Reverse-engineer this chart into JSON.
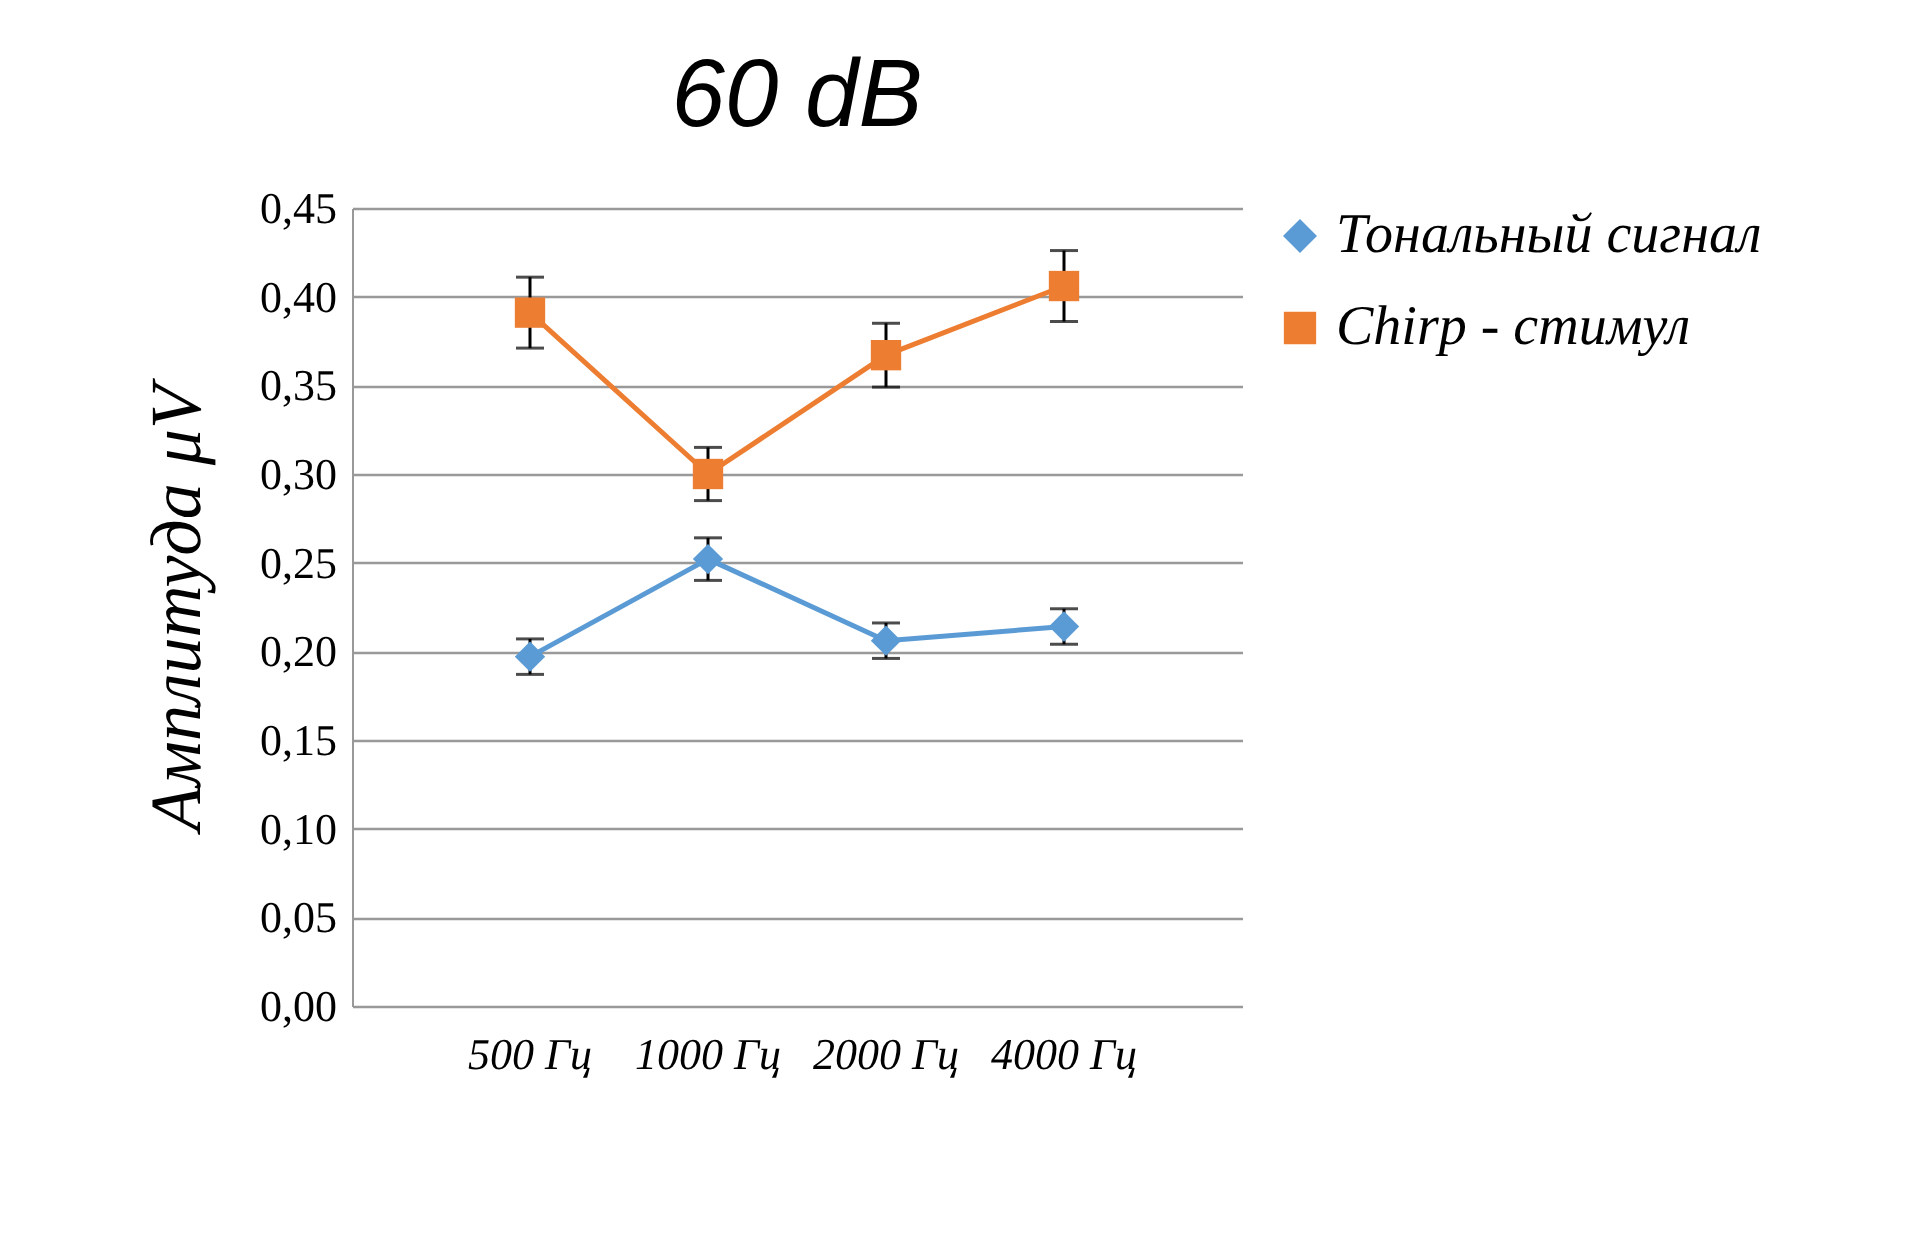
{
  "chart_data": {
    "type": "line",
    "title": "60 dB",
    "ylabel": "Амплитуда μV",
    "categories": [
      "500 Гц",
      "1000 Гц",
      "2000 Гц",
      "4000 Гц"
    ],
    "series": [
      {
        "name": "Тональный сигнал",
        "color": "#5b9bd5",
        "marker": "diamond",
        "values": [
          0.197,
          0.252,
          0.206,
          0.214
        ],
        "errors": [
          0.01,
          0.012,
          0.01,
          0.01
        ]
      },
      {
        "name": "Chirp - стимул",
        "color": "#ed7d31",
        "marker": "square",
        "values": [
          0.391,
          0.3,
          0.367,
          0.406
        ],
        "errors": [
          0.02,
          0.015,
          0.018,
          0.02
        ]
      }
    ],
    "ylim": [
      0,
      0.45
    ],
    "yticks": [
      {
        "value": 0,
        "label": "0,00"
      },
      {
        "value": 0.05,
        "label": "0,05"
      },
      {
        "value": 0.1,
        "label": "0,10"
      },
      {
        "value": 0.15,
        "label": "0,15"
      },
      {
        "value": 0.2,
        "label": "0,20"
      },
      {
        "value": 0.25,
        "label": "0,25"
      },
      {
        "value": 0.3,
        "label": "0,30"
      },
      {
        "value": 0.35,
        "label": "0,35"
      },
      {
        "value": 0.4,
        "label": "0,40"
      },
      {
        "value": 0.45,
        "label": "0,45"
      }
    ],
    "grid": "y",
    "legend": "right"
  }
}
